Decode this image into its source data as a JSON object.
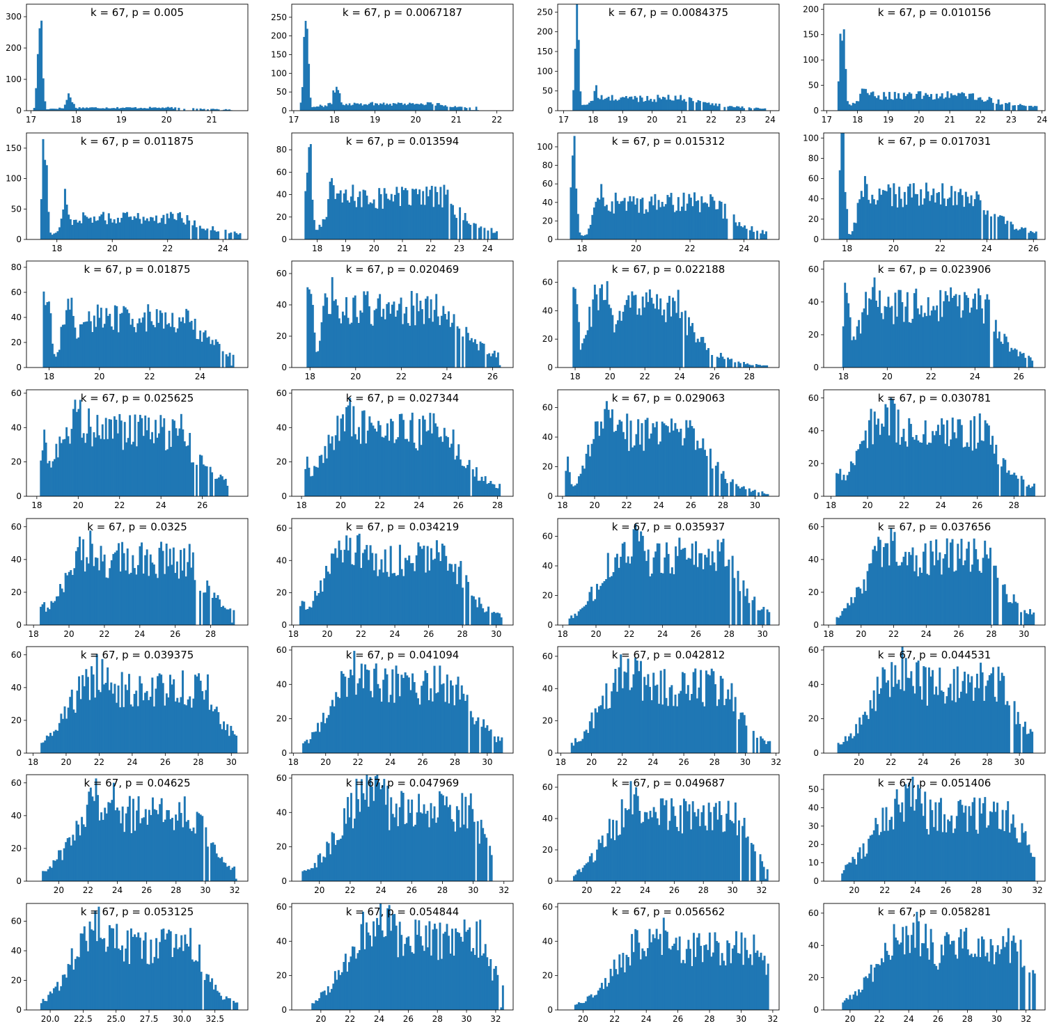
{
  "chart_data": [
    {
      "type": "bar",
      "title": "k = 67, p = 0.005",
      "xlim": [
        16.9,
        21.8
      ],
      "ylim": [
        0,
        340
      ],
      "xticks": [
        17,
        18,
        19,
        20,
        21
      ],
      "yticks": [
        0,
        100,
        200,
        300
      ],
      "peaks": [
        [
          17.2,
          330,
          0.05
        ],
        [
          17.85,
          55,
          0.07
        ]
      ],
      "tail": [
        18.0,
        20.1,
        12,
        4
      ],
      "tail_end": 21.4
    },
    {
      "type": "bar",
      "title": "k = 67, p = 0.0067187",
      "xlim": [
        16.95,
        22.4
      ],
      "ylim": [
        0,
        285
      ],
      "xticks": [
        17,
        18,
        19,
        20,
        21,
        22
      ],
      "yticks": [
        0,
        50,
        100,
        150,
        200,
        250
      ],
      "peaks": [
        [
          17.3,
          275,
          0.06
        ],
        [
          18.05,
          75,
          0.08
        ]
      ],
      "tail": [
        18.2,
        20.4,
        24,
        4
      ],
      "tail_end": 21.5
    },
    {
      "type": "bar",
      "title": "k = 67, p = 0.0084375",
      "xlim": [
        16.8,
        24.3
      ],
      "ylim": [
        0,
        270
      ],
      "xticks": [
        17,
        18,
        19,
        20,
        21,
        22,
        23,
        24
      ],
      "yticks": [
        0,
        50,
        100,
        150,
        200,
        250
      ],
      "peaks": [
        [
          17.45,
          265,
          0.07
        ],
        [
          18.1,
          55,
          0.1
        ]
      ],
      "tail": [
        18.4,
        21.2,
        40,
        4
      ],
      "tail_end": 23.8
    },
    {
      "type": "bar",
      "title": "k = 67, p = 0.010156",
      "xlim": [
        16.9,
        24.1
      ],
      "ylim": [
        0,
        210
      ],
      "xticks": [
        17,
        18,
        19,
        20,
        21,
        22,
        23,
        24
      ],
      "yticks": [
        0,
        50,
        100,
        150,
        200
      ],
      "peaks": [
        [
          17.5,
          200,
          0.08
        ],
        [
          18.2,
          55,
          0.12
        ]
      ],
      "tail": [
        18.6,
        21.8,
        38,
        4
      ],
      "tail_end": 23.8
    },
    {
      "type": "bar",
      "title": "k = 67, p = 0.011875",
      "xlim": [
        16.9,
        24.9
      ],
      "ylim": [
        0,
        175
      ],
      "xticks": [
        18,
        20,
        22,
        24
      ],
      "yticks": [
        0,
        50,
        100,
        150
      ],
      "peaks": [
        [
          17.55,
          165,
          0.09
        ],
        [
          18.3,
          75,
          0.12
        ]
      ],
      "tail": [
        18.8,
        22.5,
        45,
        5
      ],
      "tail_end": 24.6
    },
    {
      "type": "bar",
      "title": "k = 67, p = 0.013594",
      "xlim": [
        17.1,
        24.9
      ],
      "ylim": [
        0,
        95
      ],
      "xticks": [
        18,
        19,
        20,
        21,
        22,
        23,
        24
      ],
      "yticks": [
        0,
        20,
        40,
        60,
        80
      ],
      "peaks": [
        [
          17.7,
          90,
          0.1
        ],
        [
          18.5,
          60,
          0.15
        ]
      ],
      "tail": [
        19.0,
        22.5,
        48,
        3
      ],
      "tail_end": 24.3
    },
    {
      "type": "bar",
      "title": "k = 67, p = 0.015312",
      "xlim": [
        17.1,
        25.3
      ],
      "ylim": [
        0,
        115
      ],
      "xticks": [
        18,
        20,
        22,
        24
      ],
      "yticks": [
        0,
        20,
        40,
        60,
        80,
        100
      ],
      "peaks": [
        [
          17.7,
          110,
          0.1
        ],
        [
          18.7,
          55,
          0.25
        ]
      ],
      "tail": [
        19.3,
        23.0,
        50,
        3
      ],
      "tail_end": 24.8
    },
    {
      "type": "bar",
      "title": "k = 67, p = 0.017031",
      "xlim": [
        17.0,
        26.5
      ],
      "ylim": [
        0,
        105
      ],
      "xticks": [
        18,
        20,
        22,
        24,
        26
      ],
      "yticks": [
        0,
        20,
        40,
        60,
        80,
        100
      ],
      "peaks": [
        [
          17.8,
          100,
          0.12
        ],
        [
          18.8,
          60,
          0.3
        ]
      ],
      "tail": [
        19.5,
        23.5,
        55,
        4
      ],
      "tail_end": 26.1
    },
    {
      "type": "bar",
      "title": "k = 67, p = 0.01875",
      "xlim": [
        17.1,
        25.9
      ],
      "ylim": [
        0,
        85
      ],
      "xticks": [
        18,
        20,
        22,
        24
      ],
      "yticks": [
        0,
        20,
        40,
        60,
        80
      ],
      "peaks": [
        [
          17.9,
          75,
          0.15
        ],
        [
          18.8,
          50,
          0.3
        ]
      ],
      "tail": [
        19.5,
        23.5,
        50,
        4
      ],
      "tail_end": 25.3
    },
    {
      "type": "bar",
      "title": "k = 67, p = 0.020469",
      "xlim": [
        17.2,
        26.9
      ],
      "ylim": [
        0,
        68
      ],
      "xticks": [
        18,
        20,
        22,
        24,
        26
      ],
      "yticks": [
        0,
        20,
        40,
        60
      ],
      "peaks": [
        [
          18.0,
          60,
          0.15
        ],
        [
          18.9,
          50,
          0.35
        ]
      ],
      "tail": [
        19.8,
        24.0,
        48,
        4
      ],
      "tail_end": 26.3
    },
    {
      "type": "bar",
      "title": "k = 67, p = 0.022188",
      "xlim": [
        17.0,
        29.7
      ],
      "ylim": [
        0,
        75
      ],
      "xticks": [
        18,
        20,
        22,
        24,
        26,
        28
      ],
      "yticks": [
        0,
        20,
        40,
        60
      ],
      "peaks": [
        [
          18.0,
          55,
          0.2
        ],
        [
          19.5,
          60,
          0.7
        ]
      ],
      "tail": [
        21.0,
        24.0,
        55,
        4
      ],
      "tail_end": 29.0
    },
    {
      "type": "bar",
      "title": "k = 67, p = 0.023906",
      "xlim": [
        17.1,
        27.2
      ],
      "ylim": [
        0,
        65
      ],
      "xticks": [
        18,
        20,
        22,
        24,
        26
      ],
      "yticks": [
        0,
        20,
        40,
        60
      ],
      "peaks": [
        [
          18.1,
          45,
          0.2
        ],
        [
          19.5,
          50,
          0.7
        ]
      ],
      "tail": [
        20.5,
        24.5,
        48,
        3
      ],
      "tail_end": 26.6
    },
    {
      "type": "bar",
      "title": "k = 67, p = 0.025625",
      "xlim": [
        17.5,
        28.2
      ],
      "ylim": [
        0,
        62
      ],
      "xticks": [
        18,
        20,
        22,
        24,
        26
      ],
      "yticks": [
        0,
        20,
        40,
        60
      ],
      "peaks": [
        [
          18.3,
          35,
          0.2
        ],
        [
          20.0,
          50,
          1.0
        ]
      ],
      "tail": [
        21.0,
        25.0,
        48,
        4
      ],
      "tail_end": 27.2
    },
    {
      "type": "bar",
      "title": "k = 67, p = 0.027344",
      "xlim": [
        17.5,
        28.8
      ],
      "ylim": [
        0,
        62
      ],
      "xticks": [
        18,
        20,
        22,
        24,
        26,
        28
      ],
      "yticks": [
        0,
        20,
        40,
        60
      ],
      "peaks": [
        [
          18.3,
          25,
          0.2
        ],
        [
          20.5,
          50,
          1.2
        ]
      ],
      "tail": [
        21.5,
        25.5,
        48,
        4
      ],
      "tail_end": 28.1
    },
    {
      "type": "bar",
      "title": "k = 67, p = 0.029063",
      "xlim": [
        17.7,
        31.5
      ],
      "ylim": [
        0,
        72
      ],
      "xticks": [
        18,
        20,
        22,
        24,
        26,
        28,
        30
      ],
      "yticks": [
        0,
        20,
        40,
        60
      ],
      "peaks": [
        [
          18.3,
          25,
          0.2
        ],
        [
          21.0,
          60,
          1.2
        ]
      ],
      "tail": [
        22.0,
        26.5,
        55,
        4
      ],
      "tail_end": 30.8
    },
    {
      "type": "bar",
      "title": "k = 67, p = 0.030781",
      "xlim": [
        17.6,
        29.7
      ],
      "ylim": [
        0,
        65
      ],
      "xticks": [
        18,
        20,
        22,
        24,
        26,
        28
      ],
      "yticks": [
        0,
        20,
        40,
        60
      ],
      "peaks": [
        [
          18.4,
          20,
          0.2
        ],
        [
          21.0,
          55,
          1.3
        ]
      ],
      "tail": [
        22.0,
        26.5,
        50,
        4
      ],
      "tail_end": 29.1
    },
    {
      "type": "bar",
      "title": "k = 67, p = 0.0325",
      "xlim": [
        17.6,
        30.1
      ],
      "ylim": [
        0,
        65
      ],
      "xticks": [
        18,
        20,
        22,
        24,
        26,
        28
      ],
      "yticks": [
        0,
        20,
        40,
        60
      ],
      "peaks": [
        [
          18.5,
          15,
          0.2
        ],
        [
          21.3,
          52,
          1.4
        ]
      ],
      "tail": [
        22.5,
        27.0,
        50,
        4
      ],
      "tail_end": 29.3
    },
    {
      "type": "bar",
      "title": "k = 67, p = 0.034219",
      "xlim": [
        17.9,
        31.0
      ],
      "ylim": [
        0,
        66
      ],
      "xticks": [
        18,
        20,
        22,
        24,
        26,
        28,
        30
      ],
      "yticks": [
        0,
        20,
        40,
        60
      ],
      "peaks": [
        [
          18.5,
          15,
          0.2
        ],
        [
          21.5,
          55,
          1.5
        ]
      ],
      "tail": [
        22.5,
        27.5,
        52,
        4
      ],
      "tail_end": 30.3
    },
    {
      "type": "bar",
      "title": "k = 67, p = 0.035937",
      "xlim": [
        17.7,
        31.0
      ],
      "ylim": [
        0,
        72
      ],
      "xticks": [
        18,
        20,
        22,
        24,
        26,
        28,
        30
      ],
      "yticks": [
        0,
        20,
        40,
        60
      ],
      "peaks": [
        [
          18.5,
          5,
          0.2
        ],
        [
          22.0,
          60,
          1.6
        ]
      ],
      "tail": [
        23.0,
        28.0,
        58,
        4
      ],
      "tail_end": 30.4
    },
    {
      "type": "bar",
      "title": "k = 67, p = 0.037656",
      "xlim": [
        17.7,
        31.3
      ],
      "ylim": [
        0,
        65
      ],
      "xticks": [
        18,
        20,
        22,
        24,
        26,
        28,
        30
      ],
      "yticks": [
        0,
        20,
        40,
        60
      ],
      "peaks": [
        [
          18.6,
          5,
          0.2
        ],
        [
          22.0,
          55,
          1.6
        ]
      ],
      "tail": [
        23.0,
        28.0,
        52,
        4
      ],
      "tail_end": 30.6
    },
    {
      "type": "bar",
      "title": "k = 67, p = 0.039375",
      "xlim": [
        17.6,
        31.0
      ],
      "ylim": [
        0,
        65
      ],
      "xticks": [
        18,
        20,
        22,
        24,
        26,
        28,
        30
      ],
      "yticks": [
        0,
        20,
        40,
        60
      ],
      "peaks": [
        [
          18.6,
          3,
          0.2
        ],
        [
          22.0,
          52,
          1.7
        ]
      ],
      "tail": [
        23.5,
        28.5,
        50,
        4
      ],
      "tail_end": 30.3
    },
    {
      "type": "bar",
      "title": "k = 67, p = 0.041094",
      "xlim": [
        17.9,
        31.6
      ],
      "ylim": [
        0,
        62
      ],
      "xticks": [
        18,
        20,
        22,
        24,
        26,
        28,
        30
      ],
      "yticks": [
        0,
        20,
        40,
        60
      ],
      "peaks": [
        [
          18.7,
          3,
          0.2
        ],
        [
          22.2,
          52,
          1.7
        ]
      ],
      "tail": [
        23.5,
        28.5,
        50,
        4
      ],
      "tail_end": 30.9
    },
    {
      "type": "bar",
      "title": "k = 67, p = 0.042812",
      "xlim": [
        17.8,
        32.2
      ],
      "ylim": [
        0,
        66
      ],
      "xticks": [
        18,
        20,
        22,
        24,
        26,
        28,
        30,
        32
      ],
      "yticks": [
        0,
        20,
        40,
        60
      ],
      "peaks": [
        [
          18.8,
          3,
          0.2
        ],
        [
          22.5,
          55,
          1.8
        ]
      ],
      "tail": [
        24.0,
        29.0,
        52,
        4
      ],
      "tail_end": 31.6
    },
    {
      "type": "bar",
      "title": "k = 67, p = 0.044531",
      "xlim": [
        17.8,
        31.6
      ],
      "ylim": [
        0,
        62
      ],
      "xticks": [
        20,
        22,
        24,
        26,
        28,
        30
      ],
      "yticks": [
        0,
        20,
        40,
        60
      ],
      "peaks": [
        [
          18.8,
          3,
          0.2
        ],
        [
          22.8,
          55,
          1.9
        ]
      ],
      "tail": [
        24.5,
        29.0,
        52,
        4
      ],
      "tail_end": 30.8
    },
    {
      "type": "bar",
      "title": "k = 67, p = 0.04625",
      "xlim": [
        17.8,
        32.9
      ],
      "ylim": [
        0,
        65
      ],
      "xticks": [
        20,
        22,
        24,
        26,
        28,
        30,
        32
      ],
      "yticks": [
        0,
        20,
        40,
        60
      ],
      "peaks": [
        [
          19.0,
          3,
          0.2
        ],
        [
          23.0,
          55,
          1.9
        ]
      ],
      "tail": [
        24.5,
        29.5,
        52,
        4
      ],
      "tail_end": 32.1
    },
    {
      "type": "bar",
      "title": "k = 67, p = 0.047969",
      "xlim": [
        18.2,
        32.6
      ],
      "ylim": [
        0,
        62
      ],
      "xticks": [
        20,
        22,
        24,
        26,
        28,
        30,
        32
      ],
      "yticks": [
        0,
        20,
        40,
        60
      ],
      "peaks": [
        [
          19.0,
          3,
          0.2
        ],
        [
          23.3,
          55,
          2.0
        ]
      ],
      "tail": [
        25.0,
        30.0,
        52,
        4
      ],
      "tail_end": 31.2
    },
    {
      "type": "bar",
      "title": "k = 67, p = 0.049687",
      "xlim": [
        18.0,
        33.2
      ],
      "ylim": [
        0,
        68
      ],
      "xticks": [
        20,
        22,
        24,
        26,
        28,
        30,
        32
      ],
      "yticks": [
        0,
        20,
        40,
        60
      ],
      "peaks": [
        [
          19.2,
          3,
          0.2
        ],
        [
          23.5,
          55,
          2.0
        ]
      ],
      "tail": [
        25.0,
        30.5,
        52,
        4
      ],
      "tail_end": 32.4
    },
    {
      "type": "bar",
      "title": "k = 67, p = 0.051406",
      "xlim": [
        18.0,
        32.5
      ],
      "ylim": [
        0,
        58
      ],
      "xticks": [
        20,
        22,
        24,
        26,
        28,
        30,
        32
      ],
      "yticks": [
        0,
        10,
        20,
        30,
        40,
        50
      ],
      "peaks": [
        [
          19.3,
          3,
          0.2
        ],
        [
          23.5,
          48,
          2.1
        ]
      ],
      "tail": [
        25.5,
        30.5,
        45,
        4
      ],
      "tail_end": 31.8
    },
    {
      "type": "bar",
      "title": "k = 67, p = 0.053125",
      "xlim": [
        18.2,
        35.0
      ],
      "ylim": [
        0,
        72
      ],
      "xticks": [
        20.0,
        22.5,
        25.0,
        27.5,
        30.0,
        32.5
      ],
      "xtick_labels": [
        "20.0",
        "22.5",
        "25.0",
        "27.5",
        "30.0",
        "32.5"
      ],
      "yticks": [
        0,
        20,
        40,
        60
      ],
      "peaks": [
        [
          19.4,
          3,
          0.2
        ],
        [
          23.8,
          60,
          2.1
        ]
      ],
      "tail": [
        25.5,
        31.0,
        55,
        4
      ],
      "tail_end": 34.2
    },
    {
      "type": "bar",
      "title": "k = 67, p = 0.054844",
      "xlim": [
        18.0,
        33.2
      ],
      "ylim": [
        0,
        62
      ],
      "xticks": [
        20,
        22,
        24,
        26,
        28,
        30,
        32
      ],
      "yticks": [
        0,
        20,
        40,
        60
      ],
      "peaks": [
        [
          19.5,
          3,
          0.2
        ],
        [
          24.0,
          55,
          2.1
        ]
      ],
      "tail": [
        26.0,
        31.0,
        52,
        4
      ],
      "tail_end": 32.5
    },
    {
      "type": "bar",
      "title": "k = 67, p = 0.056562",
      "xlim": [
        18.4,
        32.4
      ],
      "ylim": [
        0,
        62
      ],
      "xticks": [
        20,
        22,
        24,
        26,
        28,
        30,
        32
      ],
      "yticks": [
        0,
        20,
        40,
        60
      ],
      "peaks": [
        [
          19.6,
          3,
          0.2
        ],
        [
          24.5,
          48,
          2.2
        ]
      ],
      "tail": [
        26.5,
        31.0,
        45,
        4
      ],
      "tail_end": 31.7
    },
    {
      "type": "bar",
      "title": "k = 67, p = 0.058281",
      "xlim": [
        18.2,
        33.3
      ],
      "ylim": [
        0,
        66
      ],
      "xticks": [
        20,
        22,
        24,
        26,
        28,
        30,
        32
      ],
      "yticks": [
        0,
        20,
        40,
        60
      ],
      "peaks": [
        [
          19.6,
          3,
          0.2
        ],
        [
          24.2,
          52,
          2.2
        ]
      ],
      "tail": [
        26.5,
        31.5,
        50,
        4
      ],
      "tail_end": 32.6
    }
  ]
}
